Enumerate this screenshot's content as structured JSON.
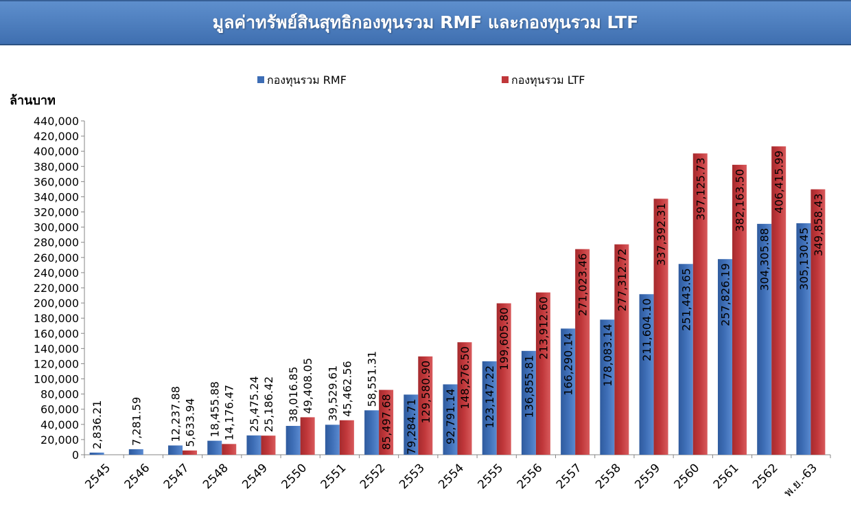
{
  "title": "มูลค่าทรัพย์สินสุทธิกองทุนรวม RMF  และกองทุนรวม LTF",
  "colors": {
    "rmf": "#3d6db5",
    "ltf": "#c0373a"
  },
  "chart_data": {
    "type": "bar",
    "ylabel": "ล้านบาท",
    "ylim": [
      0,
      440000
    ],
    "yticks": [
      0,
      20000,
      40000,
      60000,
      80000,
      100000,
      120000,
      140000,
      160000,
      180000,
      200000,
      220000,
      240000,
      260000,
      280000,
      300000,
      320000,
      340000,
      360000,
      380000,
      400000,
      420000,
      440000
    ],
    "ytick_labels": [
      "0",
      "20,000",
      "40,000",
      "60,000",
      "80,000",
      "100,000",
      "120,000",
      "140,000",
      "160,000",
      "180,000",
      "200,000",
      "220,000",
      "240,000",
      "260,000",
      "280,000",
      "300,000",
      "320,000",
      "340,000",
      "360,000",
      "380,000",
      "400,000",
      "420,000",
      "440,000"
    ],
    "grid": false,
    "legend_position": "top",
    "categories": [
      "2545",
      "2546",
      "2547",
      "2548",
      "2549",
      "2550",
      "2551",
      "2552",
      "2553",
      "2554",
      "2555",
      "2556",
      "2557",
      "2558",
      "2559",
      "2560",
      "2561",
      "2562",
      "พ.ย.-63"
    ],
    "series": [
      {
        "name": "กองทุนรวม RMF",
        "values": [
          2836.21,
          7281.59,
          12237.88,
          18455.88,
          25475.24,
          38016.85,
          39529.61,
          58551.31,
          79284.71,
          92791.14,
          123147.22,
          136855.81,
          166290.14,
          178083.14,
          211604.1,
          251443.65,
          257826.19,
          304305.88,
          305130.45
        ],
        "labels": [
          "2,836.21",
          "7,281.59",
          "12,237.88",
          "18,455.88",
          "25,475.24",
          "38,016.85",
          "39,529.61",
          "58,551.31",
          "79,284.71",
          "92,791.14",
          "123,147.22",
          "136,855.81",
          "166,290.14",
          "178,083.14",
          "211,604.10",
          "251,443.65",
          "257,826.19",
          "304,305.88",
          "305,130.45"
        ]
      },
      {
        "name": "กองทุนรวม LTF",
        "values": [
          null,
          null,
          5633.94,
          14176.47,
          25186.42,
          49408.05,
          45462.56,
          85497.68,
          129580.9,
          148276.5,
          199605.8,
          213912.6,
          271023.46,
          277312.72,
          337392.31,
          397125.73,
          382163.5,
          406415.99,
          349858.43
        ],
        "labels": [
          "",
          "",
          "5,633.94",
          "14,176.47",
          "25,186.42",
          "49,408.05",
          "45,462.56",
          "85,497.68",
          "129,580.90",
          "148,276.50",
          "199,605.80",
          "213,912.60",
          "271,023.46",
          "277,312.72",
          "337,392.31",
          "397,125.73",
          "382,163.50",
          "406,415.99",
          "349,858.43"
        ]
      }
    ]
  }
}
